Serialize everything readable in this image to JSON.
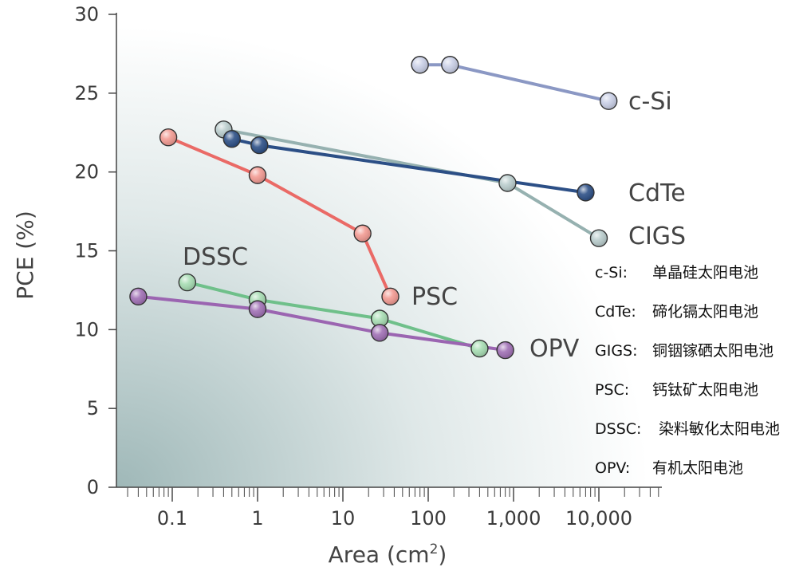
{
  "chart_data": {
    "type": "line",
    "xlabel": "Area (cm",
    "xlabel_sup": "2",
    "xlabel_end": ")",
    "ylabel": "PCE (%)",
    "xscale": "log",
    "xlim": [
      0.02,
      60000
    ],
    "ylim": [
      0,
      30
    ],
    "yticks": [
      0,
      5,
      10,
      15,
      20,
      25,
      30
    ],
    "xticks": [
      {
        "value": 0.1,
        "label": "0.1"
      },
      {
        "value": 1,
        "label": "1"
      },
      {
        "value": 10,
        "label": "10"
      },
      {
        "value": 100,
        "label": "100"
      },
      {
        "value": 1000,
        "label": "1,000"
      },
      {
        "value": 10000,
        "label": "10,000"
      }
    ],
    "series": [
      {
        "name": "c-Si",
        "label": "c-Si",
        "color": "#8b98c4",
        "marker": "#c9cfe6",
        "points": [
          [
            80,
            26.8
          ],
          [
            180,
            26.8
          ],
          [
            13000,
            24.5
          ]
        ]
      },
      {
        "name": "CIGS",
        "label": "CIGS",
        "color": "#96b1b0",
        "marker": "#b9cccc",
        "points": [
          [
            0.4,
            22.7
          ],
          [
            850,
            19.3
          ],
          [
            10000,
            15.8
          ]
        ]
      },
      {
        "name": "CdTe",
        "label": "CdTe",
        "color": "#2c4f86",
        "marker": "#2c4f86",
        "points": [
          [
            0.5,
            22.1
          ],
          [
            1.05,
            21.7
          ],
          [
            7000,
            18.7
          ]
        ]
      },
      {
        "name": "PSC",
        "label": "PSC",
        "color": "#ea6a66",
        "marker": "#f29a92",
        "points": [
          [
            0.09,
            22.2
          ],
          [
            1.0,
            19.8
          ],
          [
            17,
            16.1
          ],
          [
            36,
            12.1
          ]
        ]
      },
      {
        "name": "DSSC",
        "label": "DSSC",
        "color": "#6fc08a",
        "marker": "#a6dcb2",
        "points": [
          [
            0.15,
            13.0
          ],
          [
            1.0,
            11.9
          ],
          [
            27,
            10.7
          ],
          [
            400,
            8.8
          ]
        ]
      },
      {
        "name": "OPV",
        "label": "OPV",
        "color": "#9b65b1",
        "marker": "#a070b5",
        "points": [
          [
            0.04,
            12.1
          ],
          [
            1.0,
            11.3
          ],
          [
            27,
            9.8
          ],
          [
            800,
            8.7
          ]
        ]
      }
    ],
    "legend": [
      {
        "key": "c-Si:",
        "desc": "单晶硅太阳电池"
      },
      {
        "key": "CdTe:",
        "desc": "碲化镉太阳电池"
      },
      {
        "key": "GIGS:",
        "desc": "铜铟镓硒太阳电池"
      },
      {
        "key": "PSC:",
        "desc": "钙钛矿太阳电池"
      },
      {
        "key": "DSSC:",
        "desc": "染料敏化太阳电池"
      },
      {
        "key": "OPV:",
        "desc": "有机太阳电池"
      }
    ]
  }
}
